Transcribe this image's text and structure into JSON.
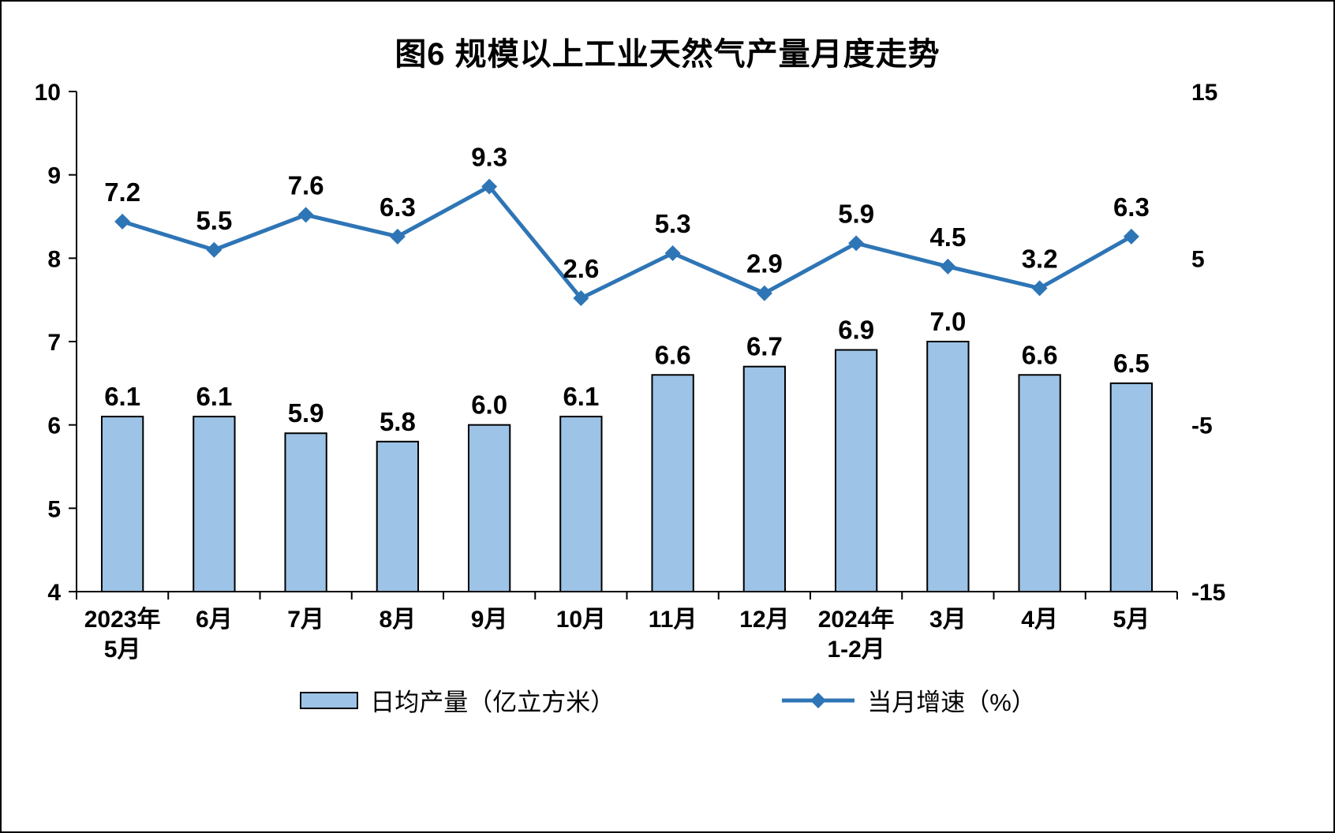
{
  "chart_data": {
    "type": "combo",
    "title": "图6 规模以上工业天然气产量月度走势",
    "categories": [
      "2023年\n5月",
      "6月",
      "7月",
      "8月",
      "9月",
      "10月",
      "11月",
      "12月",
      "2024年\n1-2月",
      "3月",
      "4月",
      "5月"
    ],
    "series": [
      {
        "name": "日均产量（亿立方米）",
        "type": "bar",
        "axis": "left",
        "values": [
          6.1,
          6.1,
          5.9,
          5.8,
          6.0,
          6.1,
          6.6,
          6.7,
          6.9,
          7.0,
          6.6,
          6.5
        ],
        "color": "#9DC3E6",
        "border_color": "#000000"
      },
      {
        "name": "当月增速（%）",
        "type": "line",
        "axis": "right",
        "values": [
          7.2,
          5.5,
          7.6,
          6.3,
          9.3,
          2.6,
          5.3,
          2.9,
          5.9,
          4.5,
          3.2,
          6.3
        ],
        "color": "#2E75B6",
        "marker": "diamond"
      }
    ],
    "left_axis": {
      "min": 4,
      "max": 10,
      "ticks": [
        4,
        5,
        6,
        7,
        8,
        9,
        10
      ]
    },
    "right_axis": {
      "min": -15,
      "max": 15,
      "ticks": [
        -15,
        -5,
        5,
        15
      ]
    },
    "grid": false,
    "legend_position": "bottom",
    "background": "#FFFFFF"
  }
}
